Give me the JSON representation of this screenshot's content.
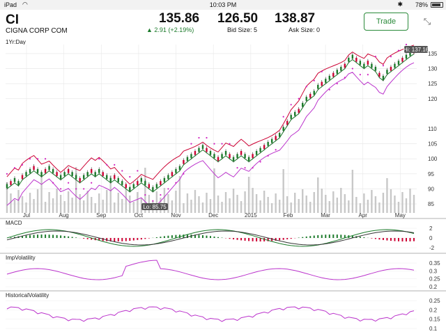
{
  "status": {
    "device": "iPad",
    "time": "10:03 PM",
    "battery": "78%"
  },
  "quote": {
    "symbol": "CI",
    "company": "CIGNA CORP COM",
    "range": "1Yr:Day",
    "last": "135.86",
    "change": "2.91 (+2.19%)",
    "bid": "126.50",
    "bid_size": "Bid Size: 5",
    "ask": "138.87",
    "ask_size": "Ask Size: 0",
    "trade_label": "Trade",
    "up_color": "#1b7a2a"
  },
  "chart_data": [
    {
      "type": "candlestick",
      "title": "",
      "x_ticks": [
        "Jul",
        "Aug",
        "Sep",
        "Oct",
        "Nov",
        "Dec",
        "2015",
        "Feb",
        "Mar",
        "Apr",
        "May"
      ],
      "y_ticks": [
        85,
        90,
        95,
        100,
        105,
        110,
        120,
        125,
        130,
        135
      ],
      "ylim": [
        82,
        138
      ],
      "hi_label": "Hi: 137.16",
      "lo_label": "Lo: 85.75",
      "series": [
        {
          "name": "price",
          "values": [
            91,
            92,
            93,
            92,
            94,
            95,
            96,
            97,
            96,
            95,
            96,
            97,
            96,
            95,
            94,
            95,
            96,
            95,
            94,
            93,
            94,
            95,
            96,
            95,
            96,
            95,
            94,
            93,
            94,
            93,
            92,
            91,
            90,
            91,
            92,
            93,
            92,
            91,
            90,
            91,
            92,
            93,
            94,
            95,
            96,
            97,
            99,
            100,
            101,
            102,
            103,
            104,
            103,
            102,
            101,
            100,
            101,
            102,
            101,
            100,
            101,
            102,
            101,
            100,
            101,
            102,
            103,
            104,
            105,
            106,
            107,
            108,
            110,
            112,
            114,
            115,
            116,
            118,
            120,
            121,
            122,
            124,
            125,
            126,
            127,
            128,
            129,
            130,
            131,
            133,
            134,
            133,
            132,
            131,
            132,
            131,
            130,
            128,
            127,
            129,
            130,
            131,
            132,
            133,
            134,
            135,
            135.86
          ]
        }
      ],
      "volume_color": "#c8c8c8",
      "band_color": "#c03",
      "ma_color": "#1b7a2a",
      "lower_band_color": "#b3c"
    },
    {
      "type": "line",
      "title": "MACD",
      "y_ticks": [
        2,
        0,
        -2
      ]
    },
    {
      "type": "line",
      "title": "ImpVolatility",
      "y_ticks": [
        0.35,
        0.3,
        0.25,
        0.2
      ]
    },
    {
      "type": "line",
      "title": "HistoricalVolatility",
      "y_ticks": [
        0.25,
        0.2,
        0.15,
        0.1
      ]
    }
  ]
}
